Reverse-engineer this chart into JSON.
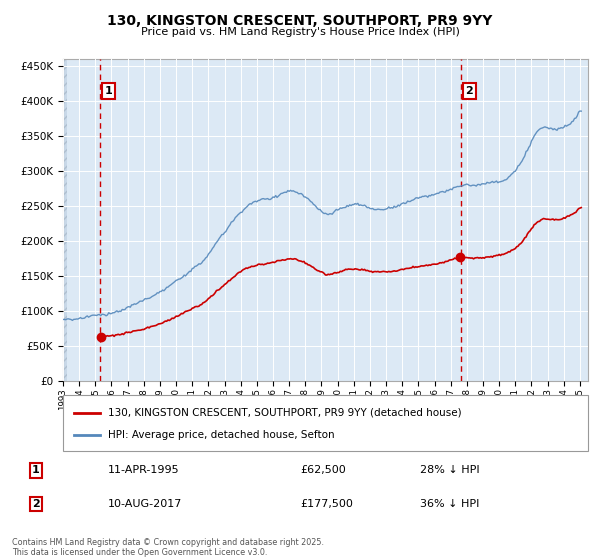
{
  "title": "130, KINGSTON CRESCENT, SOUTHPORT, PR9 9YY",
  "subtitle": "Price paid vs. HM Land Registry's House Price Index (HPI)",
  "legend_label_red": "130, KINGSTON CRESCENT, SOUTHPORT, PR9 9YY (detached house)",
  "legend_label_blue": "HPI: Average price, detached house, Sefton",
  "annotation1_label": "1",
  "annotation1_date": "11-APR-1995",
  "annotation1_price": "£62,500",
  "annotation1_hpi": "28% ↓ HPI",
  "annotation2_label": "2",
  "annotation2_date": "10-AUG-2017",
  "annotation2_price": "£177,500",
  "annotation2_hpi": "36% ↓ HPI",
  "footer": "Contains HM Land Registry data © Crown copyright and database right 2025.\nThis data is licensed under the Open Government Licence v3.0.",
  "ylim": [
    0,
    460000
  ],
  "background_color": "#ffffff",
  "plot_bg_color": "#dce9f5",
  "grid_color": "#ffffff",
  "red_color": "#cc0000",
  "blue_color": "#5588bb",
  "annotation_box_color": "#cc0000",
  "sale1_x": 1995.29,
  "sale1_y": 62500,
  "sale2_x": 2017.62,
  "sale2_y": 177500,
  "xlim_left": 1993.0,
  "xlim_right": 2025.5,
  "hatch_end_x": 1993.25,
  "title_fontsize": 10,
  "subtitle_fontsize": 8
}
